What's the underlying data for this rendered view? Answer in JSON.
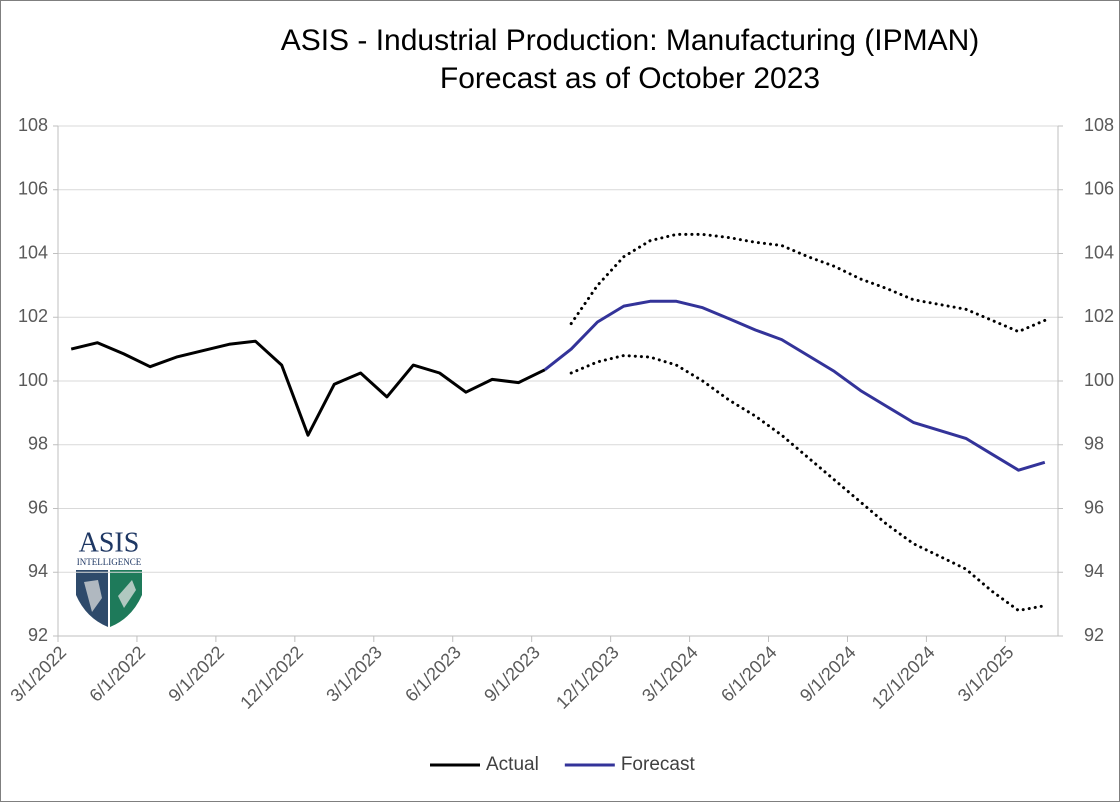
{
  "chart_data": {
    "type": "line",
    "title": "ASIS - Industrial Production: Manufacturing (IPMAN)",
    "subtitle": "Forecast as of October 2023",
    "logo": {
      "name": "ASIS",
      "tagline": "INTELLIGENCE"
    },
    "categories": [
      "3/1/2022",
      null,
      null,
      "6/1/2022",
      null,
      null,
      "9/1/2022",
      null,
      null,
      "12/1/2022",
      null,
      null,
      "3/1/2023",
      null,
      null,
      "6/1/2023",
      null,
      null,
      "9/1/2023",
      null,
      null,
      "12/1/2023",
      null,
      null,
      "3/1/2024",
      null,
      null,
      "6/1/2024",
      null,
      null,
      "9/1/2024",
      null,
      null,
      "12/1/2024",
      null,
      null,
      "3/1/2025",
      null
    ],
    "series": [
      {
        "name": "Actual",
        "color": "#000000",
        "dash": false,
        "values": [
          101.0,
          101.2,
          100.85,
          100.45,
          100.75,
          100.95,
          101.15,
          101.25,
          100.5,
          98.3,
          99.9,
          100.25,
          99.5,
          100.5,
          100.25,
          99.65,
          100.05,
          99.95,
          100.35,
          null,
          null,
          null,
          null,
          null,
          null,
          null,
          null,
          null,
          null,
          null,
          null,
          null,
          null,
          null,
          null,
          null,
          null,
          null
        ]
      },
      {
        "name": "Forecast",
        "color": "#333399",
        "dash": false,
        "values": [
          null,
          null,
          null,
          null,
          null,
          null,
          null,
          null,
          null,
          null,
          null,
          null,
          null,
          null,
          null,
          null,
          null,
          null,
          100.35,
          101.0,
          101.85,
          102.35,
          102.5,
          102.5,
          102.3,
          101.95,
          101.6,
          101.3,
          100.8,
          100.3,
          99.7,
          99.2,
          98.7,
          98.45,
          98.2,
          97.7,
          97.2,
          97.45
        ]
      },
      {
        "color": "#000000",
        "dash": true,
        "values": [
          null,
          null,
          null,
          null,
          null,
          null,
          null,
          null,
          null,
          null,
          null,
          null,
          null,
          null,
          null,
          null,
          null,
          null,
          null,
          101.8,
          103.0,
          103.9,
          104.4,
          104.6,
          104.6,
          104.5,
          104.35,
          104.25,
          103.9,
          103.6,
          103.2,
          102.9,
          102.55,
          102.4,
          102.25,
          101.9,
          101.55,
          101.9
        ]
      },
      {
        "color": "#000000",
        "dash": true,
        "values": [
          null,
          null,
          null,
          null,
          null,
          null,
          null,
          null,
          null,
          null,
          null,
          null,
          null,
          null,
          null,
          null,
          null,
          null,
          null,
          100.25,
          100.6,
          100.8,
          100.75,
          100.5,
          100.0,
          99.4,
          98.9,
          98.3,
          97.6,
          96.9,
          96.2,
          95.5,
          94.9,
          94.5,
          94.1,
          93.4,
          92.8,
          92.95
        ]
      }
    ],
    "ylim": [
      92,
      108
    ],
    "yticks": [
      92,
      94,
      96,
      98,
      100,
      102,
      104,
      106,
      108
    ],
    "y2lim": [
      92,
      108
    ],
    "y2ticks": [
      92,
      94,
      96,
      98,
      100,
      102,
      104,
      106,
      108
    ],
    "grid": true,
    "legend": "bottom"
  }
}
